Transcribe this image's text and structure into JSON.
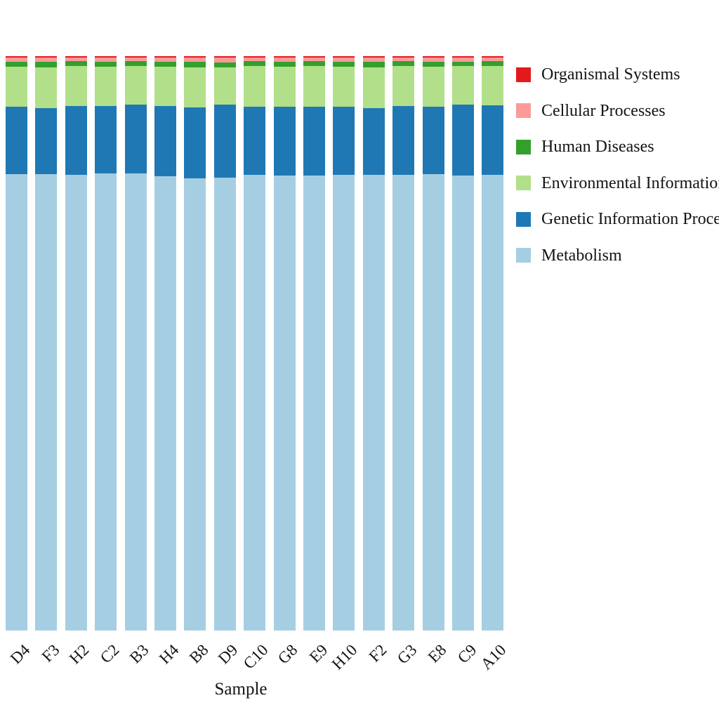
{
  "chart_data": {
    "type": "bar",
    "stacked": true,
    "normalized": "percent",
    "title": "",
    "xlabel": "Sample",
    "ylabel": "",
    "grid": false,
    "legend_position": "right",
    "axis_lines_visible": false,
    "bar_orientation": "vertical",
    "categories": [
      "D4",
      "F3",
      "H2",
      "C2",
      "B3",
      "H4",
      "B8",
      "D9",
      "C10",
      "G8",
      "E9",
      "H10",
      "F2",
      "G3",
      "E8",
      "C9",
      "A10"
    ],
    "series": [
      {
        "name": "Organismal Systems",
        "color": "#e31a1c",
        "values": [
          0.25,
          0.25,
          0.25,
          0.3,
          0.25,
          0.25,
          0.25,
          0.3,
          0.25,
          0.25,
          0.25,
          0.25,
          0.25,
          0.25,
          0.25,
          0.3,
          0.25
        ]
      },
      {
        "name": "Cellular Processes",
        "color": "#fb9a99",
        "values": [
          0.7,
          0.75,
          0.65,
          0.7,
          0.65,
          0.7,
          0.75,
          0.8,
          0.65,
          0.7,
          0.65,
          0.7,
          0.75,
          0.65,
          0.7,
          0.65,
          0.65
        ]
      },
      {
        "name": "Human Diseases",
        "color": "#33a02c",
        "values": [
          0.85,
          0.9,
          0.85,
          0.85,
          0.8,
          0.85,
          0.9,
          0.85,
          0.85,
          0.9,
          0.85,
          0.85,
          0.9,
          0.85,
          0.85,
          0.8,
          0.85
        ]
      },
      {
        "name": "Environmental Information Processing",
        "color": "#b2df8a",
        "values": [
          7.0,
          7.1,
          6.9,
          6.8,
          6.7,
          6.9,
          7.0,
          6.5,
          7.0,
          6.9,
          7.0,
          7.0,
          7.1,
          6.9,
          7.0,
          6.7,
          6.8
        ]
      },
      {
        "name": "Genetic Information Processing",
        "color": "#1f78b4",
        "values": [
          11.8,
          11.6,
          12.0,
          11.8,
          12.0,
          12.2,
          12.4,
          12.7,
          11.9,
          12.0,
          12.0,
          11.9,
          11.7,
          12.0,
          11.8,
          12.3,
          12.1
        ]
      },
      {
        "name": "Metabolism",
        "color": "#a6cee3",
        "values": [
          79.4,
          79.4,
          79.35,
          79.55,
          79.6,
          79.1,
          78.7,
          78.85,
          79.35,
          79.25,
          79.25,
          79.3,
          79.3,
          79.35,
          79.4,
          79.25,
          79.35
        ]
      }
    ]
  }
}
